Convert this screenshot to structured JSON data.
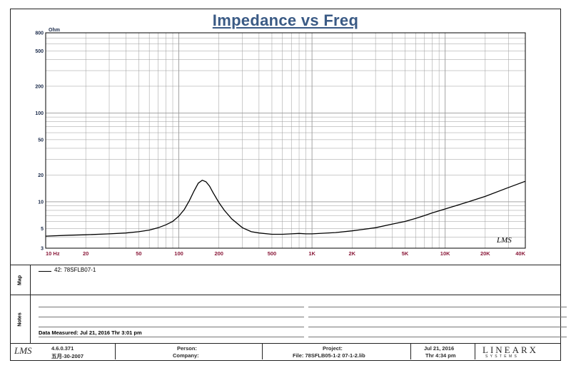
{
  "chart_data": {
    "type": "line",
    "title": "Impedance vs Freq",
    "ylabel": "Ohm",
    "xscale": "log",
    "yscale": "log",
    "xlim": [
      10,
      40000
    ],
    "ylim": [
      3,
      800
    ],
    "grid": true,
    "x_tick_labels": [
      {
        "v": 10,
        "t": "10  Hz"
      },
      {
        "v": 20,
        "t": "20"
      },
      {
        "v": 50,
        "t": "50"
      },
      {
        "v": 100,
        "t": "100"
      },
      {
        "v": 200,
        "t": "200"
      },
      {
        "v": 500,
        "t": "500"
      },
      {
        "v": 1000,
        "t": "1K"
      },
      {
        "v": 2000,
        "t": "2K"
      },
      {
        "v": 5000,
        "t": "5K"
      },
      {
        "v": 10000,
        "t": "10K"
      },
      {
        "v": 20000,
        "t": "20K"
      },
      {
        "v": 40000,
        "t": "40K"
      }
    ],
    "y_tick_labels": [
      {
        "v": 800,
        "t": "800"
      },
      {
        "v": 500,
        "t": "500"
      },
      {
        "v": 200,
        "t": "200"
      },
      {
        "v": 100,
        "t": "100"
      },
      {
        "v": 50,
        "t": "50"
      },
      {
        "v": 20,
        "t": "20"
      },
      {
        "v": 10,
        "t": "10"
      },
      {
        "v": 5,
        "t": "5"
      },
      {
        "v": 3,
        "t": "3"
      }
    ],
    "series": [
      {
        "name": "42: 78SFLB07-1",
        "color": "#000000",
        "points": [
          [
            10,
            4.1
          ],
          [
            15,
            4.2
          ],
          [
            20,
            4.25
          ],
          [
            30,
            4.35
          ],
          [
            40,
            4.45
          ],
          [
            50,
            4.6
          ],
          [
            60,
            4.8
          ],
          [
            70,
            5.1
          ],
          [
            80,
            5.5
          ],
          [
            90,
            6.0
          ],
          [
            100,
            6.9
          ],
          [
            110,
            8.2
          ],
          [
            120,
            10.3
          ],
          [
            130,
            13.2
          ],
          [
            140,
            16.2
          ],
          [
            150,
            17.5
          ],
          [
            160,
            16.8
          ],
          [
            170,
            15.0
          ],
          [
            180,
            12.8
          ],
          [
            200,
            9.8
          ],
          [
            220,
            8.0
          ],
          [
            250,
            6.4
          ],
          [
            300,
            5.1
          ],
          [
            350,
            4.6
          ],
          [
            400,
            4.45
          ],
          [
            500,
            4.3
          ],
          [
            600,
            4.3
          ],
          [
            700,
            4.35
          ],
          [
            800,
            4.4
          ],
          [
            900,
            4.35
          ],
          [
            1000,
            4.35
          ],
          [
            1500,
            4.5
          ],
          [
            2000,
            4.7
          ],
          [
            3000,
            5.1
          ],
          [
            4000,
            5.6
          ],
          [
            5000,
            6.0
          ],
          [
            6000,
            6.5
          ],
          [
            7000,
            7.0
          ],
          [
            8000,
            7.5
          ],
          [
            10000,
            8.3
          ],
          [
            15000,
            10.0
          ],
          [
            20000,
            11.5
          ],
          [
            30000,
            14.5
          ],
          [
            40000,
            17.0
          ]
        ]
      }
    ],
    "annotation": "LMS"
  },
  "legend": {
    "entry": "42: 78SFLB07-1"
  },
  "panels": {
    "map_label": "Map",
    "notes_label": "Notes"
  },
  "notes": {
    "measured": "Data Measured: Jul 21, 2016  Thr  3:01 pm"
  },
  "footer": {
    "logo": "LMS",
    "version": "4.6.0.371",
    "version_date": "五月-30-2007",
    "person": "Person:",
    "company": "Company:",
    "project": "Project:",
    "file": "File: 78SFLB05-1-2 07-1-2.lib",
    "date": "Jul 21, 2016",
    "time": "Thr  4:34 pm",
    "brand": "LINEARX",
    "brand_sub": "S Y S T E M S"
  },
  "colors": {
    "title": "#3a5a85",
    "ticks_x": "#8a1a3a",
    "ticks_y": "#1a2a4a",
    "grid": "#9a9a9a"
  }
}
